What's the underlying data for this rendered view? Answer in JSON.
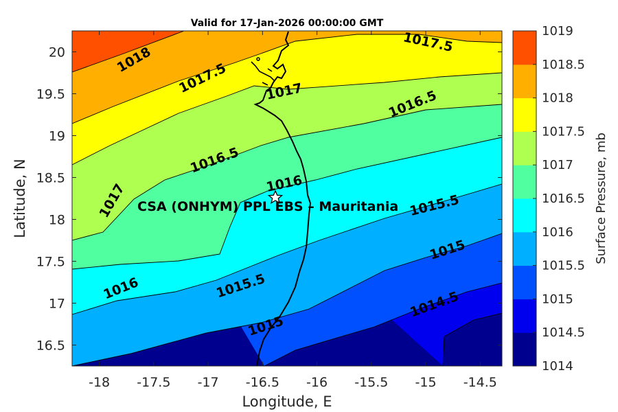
{
  "chart_data": {
    "type": "contour",
    "title": "Valid for 17-Jan-2026 00:00:00 GMT",
    "xlabel": "Longitude, E",
    "ylabel": "Latitude, N",
    "colorbar_label": "Surface Pressure, mb",
    "xlim": [
      -18.25,
      -14.3
    ],
    "ylim": [
      16.25,
      20.25
    ],
    "xticks": [
      "-18",
      "-17.5",
      "-17",
      "-16.5",
      "-16",
      "-15.5",
      "-15",
      "-14.5"
    ],
    "yticks": [
      "16.5",
      "17",
      "17.5",
      "18",
      "18.5",
      "19",
      "19.5",
      "20"
    ],
    "levels": [
      1014,
      1014.5,
      1015,
      1015.5,
      1016,
      1016.5,
      1017,
      1017.5,
      1018,
      1018.5,
      1019
    ],
    "level_labels": [
      "1014",
      "1014.5",
      "1015",
      "1015.5",
      "1016",
      "1016.5",
      "1017",
      "1017.5",
      "1018",
      "1018.5",
      "1019"
    ],
    "level_colors": [
      "#00008f",
      "#0000ef",
      "#0050ff",
      "#00afff",
      "#00ffff",
      "#50ff9f",
      "#afff50",
      "#ffff00",
      "#ffaf00",
      "#ff5000",
      "#ff0000"
    ],
    "contour_labels": [
      {
        "text": "1018",
        "x": -17.68,
        "y": 19.9,
        "angle": -30
      },
      {
        "text": "1017.5",
        "x": -17.05,
        "y": 19.68,
        "angle": -26
      },
      {
        "text": "1017.5",
        "x": -14.98,
        "y": 20.11,
        "angle": 12
      },
      {
        "text": "1017",
        "x": -16.3,
        "y": 19.52,
        "angle": -12
      },
      {
        "text": "1017",
        "x": -17.88,
        "y": 18.22,
        "angle": -60
      },
      {
        "text": "1016.5",
        "x": -15.12,
        "y": 19.37,
        "angle": -22
      },
      {
        "text": "1016.5",
        "x": -16.94,
        "y": 18.7,
        "angle": -20
      },
      {
        "text": "1016",
        "x": -16.3,
        "y": 18.42,
        "angle": -12
      },
      {
        "text": "1016",
        "x": -17.8,
        "y": 17.17,
        "angle": -22
      },
      {
        "text": "1015.5",
        "x": -16.7,
        "y": 17.2,
        "angle": -18
      },
      {
        "text": "1015.5",
        "x": -14.92,
        "y": 18.16,
        "angle": -14
      },
      {
        "text": "1015",
        "x": -14.8,
        "y": 17.63,
        "angle": -18
      },
      {
        "text": "1015",
        "x": -16.47,
        "y": 16.72,
        "angle": -18
      },
      {
        "text": "1014.5",
        "x": -14.92,
        "y": 16.98,
        "angle": -20
      }
    ],
    "station": {
      "name": "CSA (ONHYM) PPL EBS  – Mauritania",
      "lon": -16.35,
      "lat": 18.28,
      "marker": "white-star"
    }
  }
}
